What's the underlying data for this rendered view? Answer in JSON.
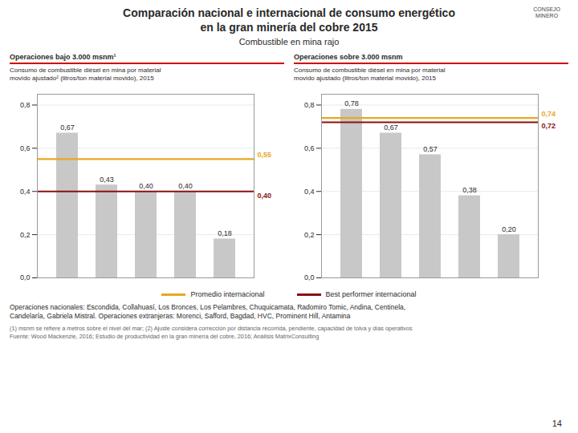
{
  "title": "Comparación nacional e internacional de consumo energético\nen la gran minería del cobre 2015",
  "subtitle": "Combustible en mina rajo",
  "logo": "CONSEJO\nMINERO",
  "footer": "Operaciones nacionales: Escondida, Collahuasí, Los Bronces, Los Pelambres, Chuquicamata, Radomiro Tomic, Andina, Centinela,\nCandelaría, Gabriela Mistral. Operaciones extranjeras: Morenci, Safford, Bagdad, HVC, Prominent Hill, Antamina",
  "footnote": "(1) msnm se refiere a metros sobre el nivel del mar; (2) Ajuste considera corrección por distancia recorrida, pendiente, capacidad de tolva y días operativos\nFuente: Wood Mackenzie, 2016; Estudio de productividad en la gran minería del cobre, 2016; Análisis MatrixConsulting",
  "page_number": "14",
  "chart_data": [
    {
      "type": "bar",
      "title": "Operaciones bajo 3.000 msnm¹",
      "subtitle": "Consumo de combustible diésel en mina por material\nmovido ajustado² (litros/ton material movido), 2015",
      "categories": [
        null,
        null,
        null,
        null,
        null
      ],
      "values": [
        0.67,
        0.43,
        0.4,
        0.4,
        0.18
      ],
      "value_labels": [
        "0,67",
        "0,43",
        "0,40",
        "0,40",
        "0,18"
      ],
      "data_labels": true,
      "color": "#c8c8c8",
      "reference_lines": [
        {
          "name": "Promedio internacional",
          "color": "#e8a820",
          "value": 0.55,
          "label": "0,55"
        },
        {
          "name": "Best performer internacional",
          "color": "#8b1010",
          "value": 0.4,
          "label": "0,40"
        }
      ],
      "ylim": [
        0.0,
        0.85
      ],
      "yticks": [
        {
          "value": 0.0,
          "label": "0,0"
        },
        {
          "value": 0.2,
          "label": "0,2"
        },
        {
          "value": 0.4,
          "label": "0,4"
        },
        {
          "value": 0.6,
          "label": "0,6"
        },
        {
          "value": 0.8,
          "label": "0,8"
        }
      ],
      "grid": true,
      "legend": "bottom",
      "tick_labels": "y"
    },
    {
      "type": "bar",
      "title": "Operaciones sobre 3.000 msnm",
      "subtitle": "Consumo de combustible diésel en mina por material\nmovido ajustado (litros/ton material movido), 2015",
      "categories": [
        null,
        null,
        null,
        null,
        null
      ],
      "values": [
        0.78,
        0.67,
        0.57,
        0.38,
        0.2
      ],
      "value_labels": [
        "0,78",
        "0,67",
        "0,57",
        "0,38",
        "0,20"
      ],
      "data_labels": true,
      "color": "#c8c8c8",
      "reference_lines": [
        {
          "name": "Promedio internacional",
          "color": "#e8a820",
          "value": 0.74,
          "label": "0,74"
        },
        {
          "name": "Best performer internacional",
          "color": "#8b1010",
          "value": 0.72,
          "label": "0,72"
        }
      ],
      "ylim": [
        0.0,
        0.85
      ],
      "yticks": [
        {
          "value": 0.0,
          "label": "0,0"
        },
        {
          "value": 0.2,
          "label": "0,2"
        },
        {
          "value": 0.4,
          "label": "0,4"
        },
        {
          "value": 0.6,
          "label": "0,6"
        },
        {
          "value": 0.8,
          "label": "0,8"
        }
      ],
      "grid": true,
      "legend": "bottom",
      "tick_labels": "y"
    }
  ]
}
